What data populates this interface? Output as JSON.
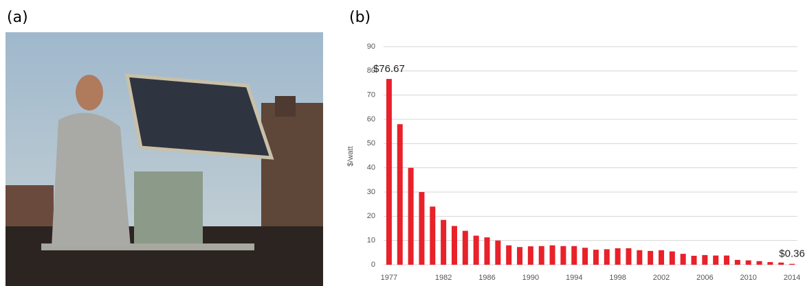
{
  "labels": [
    "(a)",
    "(b)"
  ],
  "chart_data": {
    "type": "bar",
    "y_label": "$/watt",
    "categories": [
      "1977",
      null,
      null,
      null,
      null,
      "1982",
      null,
      null,
      null,
      "1986",
      null,
      null,
      null,
      "1990",
      null,
      null,
      null,
      "1994",
      null,
      null,
      null,
      "1998",
      null,
      null,
      null,
      "2002",
      null,
      null,
      null,
      "2006",
      null,
      null,
      null,
      "2010",
      null,
      null,
      null,
      "2014"
    ],
    "values": [
      76.67,
      58,
      40,
      30,
      24,
      18.5,
      16,
      14,
      12,
      11.3,
      10,
      8,
      7.3,
      7.6,
      7.7,
      8,
      7.7,
      7.7,
      7,
      6.2,
      6.4,
      6.8,
      6.8,
      6,
      5.7,
      6,
      5.5,
      4.5,
      3.7,
      4,
      3.8,
      3.8,
      2,
      1.8,
      1.5,
      1.1,
      0.9,
      0.36
    ],
    "value_labels": [
      "$76.67",
      null,
      null,
      null,
      null,
      null,
      null,
      null,
      null,
      null,
      null,
      null,
      null,
      null,
      null,
      null,
      null,
      null,
      null,
      null,
      null,
      null,
      null,
      null,
      null,
      null,
      null,
      null,
      null,
      null,
      null,
      null,
      null,
      null,
      null,
      null,
      null,
      "$0.36"
    ],
    "color": "#e8212a",
    "ylim": [
      0,
      90
    ],
    "yticks": [
      0,
      10,
      20,
      30,
      40,
      50,
      60,
      70,
      80,
      90
    ],
    "grid": true
  }
}
